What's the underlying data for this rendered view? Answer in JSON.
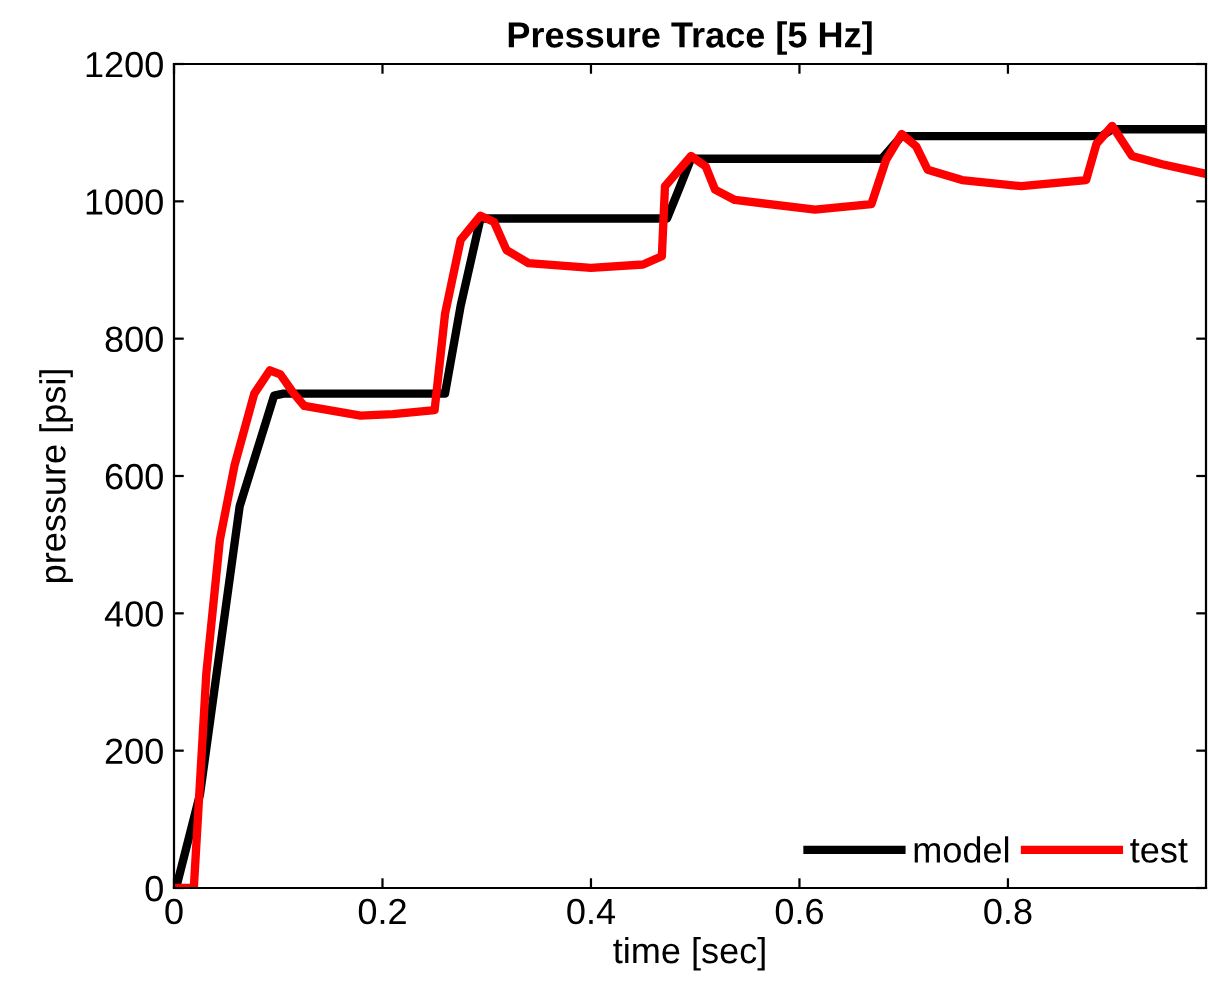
{
  "chart_data": {
    "type": "line",
    "title": "Pressure Trace [5 Hz]",
    "xlabel": "time [sec]",
    "ylabel": "pressure [psi]",
    "xlim": [
      0,
      0.99
    ],
    "xticks": [
      0,
      0.2,
      0.4,
      0.6,
      0.8
    ],
    "ylim": [
      0,
      1200
    ],
    "yticks": [
      0,
      200,
      400,
      600,
      800,
      1000,
      1200
    ],
    "grid": false,
    "legend": "bottom right",
    "line_style": "solid",
    "marker": "none",
    "series": [
      {
        "name": "model",
        "color": "#000000",
        "x": [
          0.002,
          0.025,
          0.063,
          0.096,
          0.105,
          0.26,
          0.275,
          0.294,
          0.473,
          0.485,
          0.496,
          0.679,
          0.698,
          0.89,
          0.9,
          0.99
        ],
        "values": [
          0,
          137,
          556,
          717,
          720,
          720,
          848,
          975,
          975,
          1020,
          1062,
          1062,
          1095,
          1095,
          1105,
          1105
        ]
      },
      {
        "name": "test",
        "color": "#ff0000",
        "x": [
          0.0,
          0.019,
          0.031,
          0.044,
          0.058,
          0.077,
          0.092,
          0.102,
          0.115,
          0.125,
          0.179,
          0.21,
          0.25,
          0.26,
          0.275,
          0.294,
          0.307,
          0.319,
          0.34,
          0.4,
          0.45,
          0.468,
          0.471,
          0.496,
          0.51,
          0.519,
          0.538,
          0.615,
          0.669,
          0.683,
          0.698,
          0.712,
          0.723,
          0.756,
          0.813,
          0.875,
          0.885,
          0.9,
          0.919,
          0.948,
          0.99
        ],
        "values": [
          0,
          0,
          312,
          507,
          615,
          720,
          754,
          748,
          720,
          702,
          688,
          690,
          696,
          836,
          944,
          979,
          970,
          929,
          910,
          903,
          908,
          920,
          1022,
          1066,
          1051,
          1017,
          1002,
          988,
          996,
          1060,
          1098,
          1080,
          1046,
          1031,
          1022,
          1031,
          1084,
          1110,
          1066,
          1054,
          1040
        ]
      }
    ]
  }
}
